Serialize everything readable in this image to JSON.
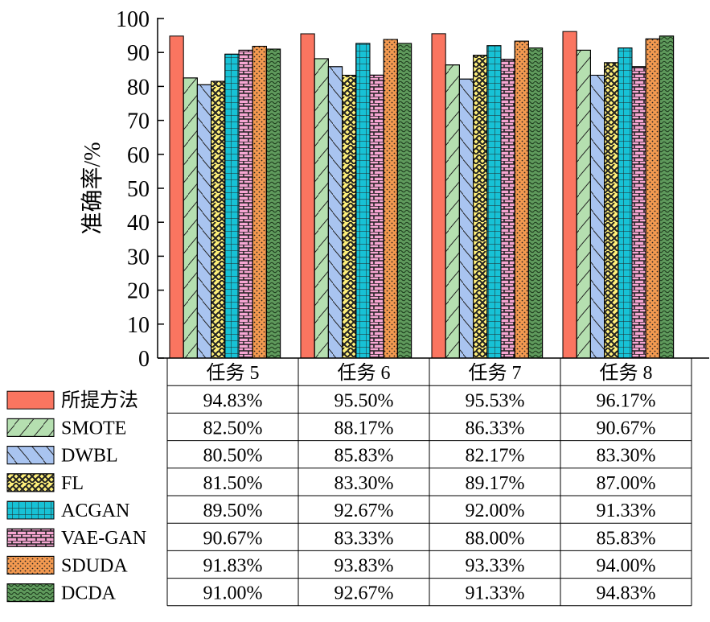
{
  "chart_data": {
    "type": "bar",
    "title": "",
    "xlabel": "",
    "ylabel": "准确率/%",
    "ylim": [
      0,
      100
    ],
    "yticks": [
      0,
      10,
      20,
      30,
      40,
      50,
      60,
      70,
      80,
      90,
      100
    ],
    "grid": false,
    "legend_position": "left of data table",
    "categories": [
      "任务 5",
      "任务 6",
      "任务 7",
      "任务 8"
    ],
    "series": [
      {
        "name": "所提方法",
        "values": [
          94.83,
          95.5,
          95.53,
          96.17
        ],
        "labels": [
          "94.83%",
          "95.50%",
          "95.53%",
          "96.17%"
        ],
        "color": "#fa7560",
        "pattern": "solid"
      },
      {
        "name": "SMOTE",
        "values": [
          82.5,
          88.17,
          86.33,
          90.67
        ],
        "labels": [
          "82.50%",
          "88.17%",
          "86.33%",
          "90.67%"
        ],
        "color": "#b5dfb0",
        "pattern": "forward-diagonal"
      },
      {
        "name": "DWBL",
        "values": [
          80.5,
          85.83,
          82.17,
          83.3
        ],
        "labels": [
          "80.50%",
          "85.83%",
          "82.17%",
          "83.30%"
        ],
        "color": "#a9c4f0",
        "pattern": "backward-diagonal"
      },
      {
        "name": "FL",
        "values": [
          81.5,
          83.3,
          89.17,
          87.0
        ],
        "labels": [
          "81.50%",
          "83.30%",
          "89.17%",
          "87.00%"
        ],
        "color": "#fff07a",
        "pattern": "zigzag"
      },
      {
        "name": "ACGAN",
        "values": [
          89.5,
          92.67,
          92.0,
          91.33
        ],
        "labels": [
          "89.50%",
          "92.67%",
          "92.00%",
          "91.33%"
        ],
        "color": "#17c2d6",
        "pattern": "grid"
      },
      {
        "name": "VAE-GAN",
        "values": [
          90.67,
          83.33,
          88.0,
          85.83
        ],
        "labels": [
          "90.67%",
          "83.33%",
          "88.00%",
          "85.83%"
        ],
        "color": "#f6a6d2",
        "pattern": "brick"
      },
      {
        "name": "SDUDA",
        "values": [
          91.83,
          93.83,
          93.33,
          94.0
        ],
        "labels": [
          "91.83%",
          "93.83%",
          "93.33%",
          "94.00%"
        ],
        "color": "#f49a50",
        "pattern": "dots"
      },
      {
        "name": "DCDA",
        "values": [
          91.0,
          92.67,
          91.33,
          94.83
        ],
        "labels": [
          "91.00%",
          "92.67%",
          "91.33%",
          "94.83%"
        ],
        "color": "#5f9a5c",
        "pattern": "waves"
      }
    ]
  }
}
